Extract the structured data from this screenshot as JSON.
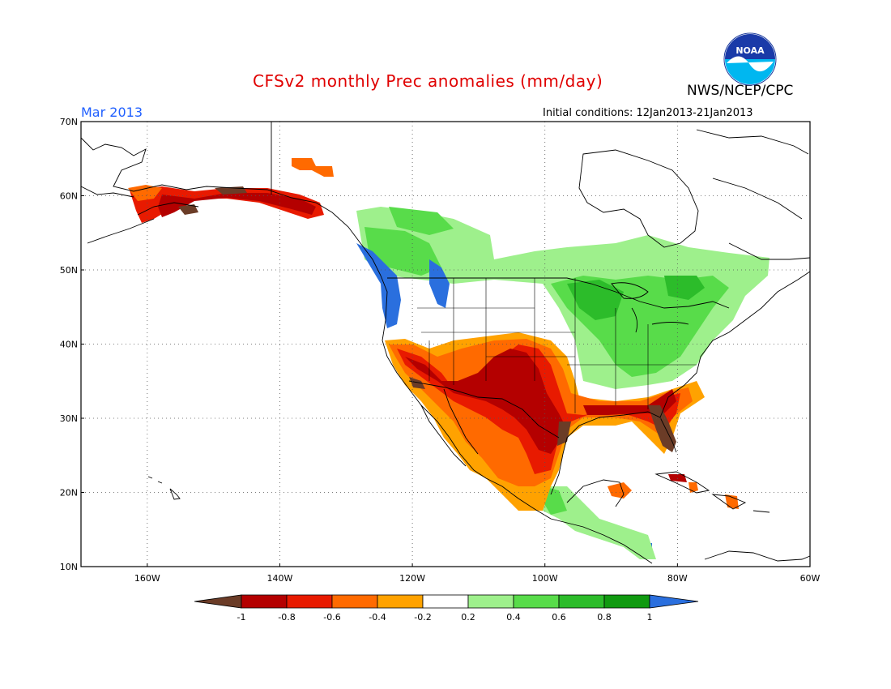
{
  "title": "CFSv2 monthly Prec anomalies (mm/day)",
  "organization": "NWS/NCEP/CPC",
  "logo_text": "NOAA",
  "period": "Mar 2013",
  "initial_conditions": "Initial conditions: 12Jan2013-21Jan2013",
  "map": {
    "lon_range": [
      -170,
      -60
    ],
    "lat_range": [
      10,
      70
    ],
    "lat_ticks": [
      "70N",
      "60N",
      "50N",
      "40N",
      "30N",
      "20N",
      "10N"
    ],
    "lon_ticks": [
      "160W",
      "140W",
      "120W",
      "100W",
      "80W",
      "60W"
    ],
    "grid_lines": "dotted"
  },
  "colorbar": {
    "labels": [
      "-1",
      "-0.8",
      "-0.6",
      "-0.4",
      "-0.2",
      "0.2",
      "0.4",
      "0.6",
      "0.8",
      "1"
    ],
    "colors": [
      "#6b3c27",
      "#b40000",
      "#e81a00",
      "#ff6a00",
      "#ffa200",
      "#ffffff",
      "#9ef08c",
      "#58dc4a",
      "#2cbc2a",
      "#109a10",
      "#2a6fde"
    ]
  }
}
